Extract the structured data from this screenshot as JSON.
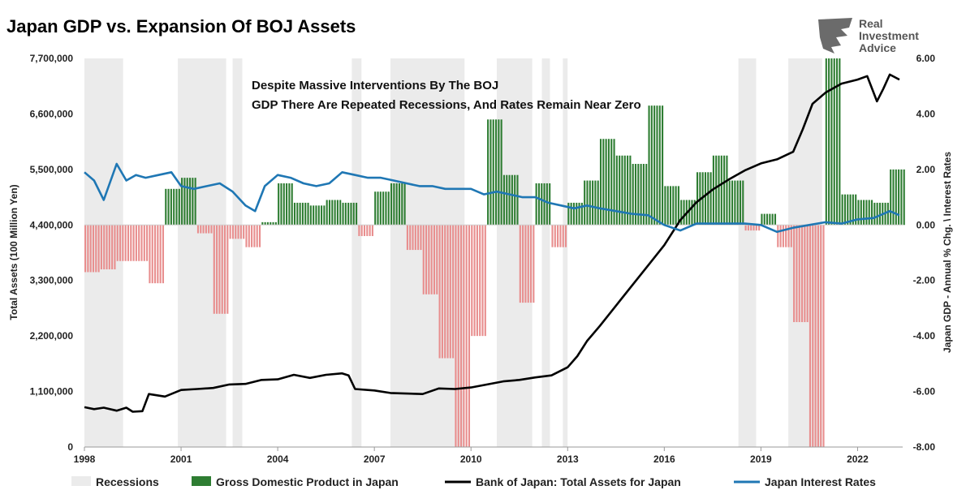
{
  "chart_data": {
    "type": "bar",
    "title": "Japan GDP vs. Expansion Of BOJ Assets",
    "annotation": [
      "Despite Massive Interventions By The BOJ",
      "GDP There Are Repeated Recessions, And Rates Remain Near Zero"
    ],
    "brand": [
      "Real",
      "Investment",
      "Advice"
    ],
    "ylabel_left": "Total Assets (100 Million Yen)",
    "ylabel_right": "Japan GDP - Annual % Chg. \\ Interest Rates",
    "xlim": [
      1998,
      2023.4
    ],
    "ylim_left": [
      0,
      7700000
    ],
    "ylim_right": [
      -8,
      6
    ],
    "x_ticks": [
      "1998",
      "2001",
      "2004",
      "2007",
      "2010",
      "2013",
      "2016",
      "2019",
      "2022"
    ],
    "y_left_ticks": [
      "0",
      "1,100,000",
      "2,200,000",
      "3,300,000",
      "4,400,000",
      "5,500,000",
      "6,600,000",
      "7,700,000"
    ],
    "y_right_ticks": [
      "-8.00",
      "-6.00",
      "-4.00",
      "-2.00",
      "0.00",
      "2.00",
      "4.00",
      "6.00"
    ],
    "legend": [
      "Recessions",
      "Gross Domestic Product in Japan",
      "Bank of Japan: Total Assets for Japan",
      "Japan Interest Rates"
    ],
    "colors": {
      "recession": "#ebebeb",
      "gdp_pos": "#2e7d32",
      "gdp_neg": "#e88e8e",
      "assets": "#000000",
      "rates": "#1f77b4"
    },
    "recessions": [
      [
        1998.0,
        1999.2
      ],
      [
        2000.9,
        2002.4
      ],
      [
        2002.6,
        2002.9
      ],
      [
        2006.3,
        2006.6
      ],
      [
        2007.5,
        2009.8
      ],
      [
        2010.8,
        2011.9
      ],
      [
        2012.2,
        2012.45
      ],
      [
        2012.85,
        2013.0
      ],
      [
        2018.3,
        2018.85
      ],
      [
        2019.85,
        2020.9
      ]
    ],
    "gdp": {
      "x": [
        1998.0,
        1998.5,
        1999.0,
        1999.5,
        2000.0,
        2000.5,
        2001.0,
        2001.5,
        2002.0,
        2002.5,
        2003.0,
        2003.5,
        2004.0,
        2004.5,
        2005.0,
        2005.5,
        2006.0,
        2006.5,
        2007.0,
        2007.5,
        2008.0,
        2008.5,
        2009.0,
        2009.5,
        2010.0,
        2010.5,
        2011.0,
        2011.5,
        2012.0,
        2012.5,
        2013.0,
        2013.5,
        2014.0,
        2014.5,
        2015.0,
        2015.5,
        2016.0,
        2016.5,
        2017.0,
        2017.5,
        2018.0,
        2018.5,
        2019.0,
        2019.5,
        2020.0,
        2020.5,
        2021.0,
        2021.5,
        2022.0,
        2022.5,
        2023.0
      ],
      "values": [
        -1.7,
        -1.6,
        -1.3,
        -1.3,
        -2.1,
        1.3,
        1.7,
        -0.3,
        -3.2,
        -0.5,
        -0.8,
        0.1,
        1.5,
        0.8,
        0.7,
        0.9,
        0.8,
        -0.4,
        1.2,
        1.5,
        -0.9,
        -2.5,
        -4.8,
        -8.0,
        -4.0,
        3.8,
        1.8,
        -2.8,
        1.5,
        -0.8,
        0.8,
        1.6,
        3.1,
        2.5,
        2.2,
        4.3,
        1.4,
        0.9,
        1.9,
        2.5,
        1.6,
        -0.2,
        0.4,
        -0.8,
        -3.5,
        -8.0,
        6.0,
        1.1,
        0.9,
        0.8,
        2.0
      ]
    },
    "series": [
      {
        "name": "Bank of Japan: Total Assets for Japan",
        "axis": "left",
        "x": [
          1998.0,
          1998.3,
          1998.6,
          1999.0,
          1999.3,
          1999.5,
          1999.8,
          2000.0,
          2000.5,
          2001.0,
          2001.5,
          2002.0,
          2002.5,
          2003.0,
          2003.5,
          2004.0,
          2004.5,
          2005.0,
          2005.5,
          2006.0,
          2006.2,
          2006.4,
          2007.0,
          2007.5,
          2008.0,
          2008.5,
          2009.0,
          2009.5,
          2010.0,
          2010.5,
          2011.0,
          2011.5,
          2012.0,
          2012.5,
          2013.0,
          2013.3,
          2013.6,
          2014.0,
          2014.5,
          2015.0,
          2015.5,
          2016.0,
          2016.5,
          2017.0,
          2017.5,
          2018.0,
          2018.5,
          2019.0,
          2019.5,
          2020.0,
          2020.3,
          2020.6,
          2021.0,
          2021.5,
          2022.0,
          2022.3,
          2022.6,
          2022.8,
          2023.0,
          2023.3
        ],
        "values": [
          790000,
          750000,
          780000,
          720000,
          780000,
          700000,
          710000,
          1050000,
          1000000,
          1130000,
          1150000,
          1170000,
          1240000,
          1250000,
          1330000,
          1340000,
          1430000,
          1370000,
          1430000,
          1460000,
          1420000,
          1150000,
          1120000,
          1070000,
          1060000,
          1050000,
          1160000,
          1150000,
          1180000,
          1240000,
          1300000,
          1330000,
          1380000,
          1420000,
          1580000,
          1800000,
          2100000,
          2400000,
          2800000,
          3200000,
          3600000,
          4000000,
          4500000,
          4850000,
          5100000,
          5300000,
          5480000,
          5620000,
          5700000,
          5850000,
          6300000,
          6800000,
          7020000,
          7200000,
          7280000,
          7350000,
          6850000,
          7100000,
          7380000,
          7280000
        ]
      },
      {
        "name": "Japan Interest Rates",
        "axis": "right",
        "x": [
          1998.0,
          1998.3,
          1998.6,
          1999.0,
          1999.3,
          1999.6,
          1999.9,
          2000.3,
          2000.7,
          2001.0,
          2001.4,
          2001.8,
          2002.2,
          2002.6,
          2003.0,
          2003.3,
          2003.6,
          2004.0,
          2004.4,
          2004.8,
          2005.2,
          2005.6,
          2006.0,
          2006.4,
          2006.8,
          2007.2,
          2007.6,
          2008.0,
          2008.4,
          2008.8,
          2009.2,
          2009.6,
          2010.0,
          2010.4,
          2010.8,
          2011.2,
          2011.6,
          2012.0,
          2012.4,
          2012.8,
          2013.2,
          2013.6,
          2014.0,
          2014.5,
          2015.0,
          2015.5,
          2016.0,
          2016.5,
          2017.0,
          2017.5,
          2018.0,
          2018.5,
          2019.0,
          2019.5,
          2020.0,
          2020.5,
          2021.0,
          2021.5,
          2022.0,
          2022.5,
          2023.0,
          2023.3
        ],
        "values": [
          1.9,
          1.6,
          0.9,
          2.2,
          1.6,
          1.8,
          1.7,
          1.8,
          1.9,
          1.4,
          1.3,
          1.4,
          1.5,
          1.2,
          0.7,
          0.5,
          1.4,
          1.8,
          1.7,
          1.5,
          1.4,
          1.5,
          1.9,
          1.8,
          1.7,
          1.7,
          1.6,
          1.5,
          1.4,
          1.4,
          1.3,
          1.3,
          1.3,
          1.1,
          1.2,
          1.1,
          1.0,
          1.0,
          0.8,
          0.7,
          0.6,
          0.7,
          0.6,
          0.5,
          0.4,
          0.35,
          0.0,
          -0.2,
          0.05,
          0.05,
          0.05,
          0.05,
          0.0,
          -0.25,
          -0.1,
          0.0,
          0.1,
          0.05,
          0.2,
          0.25,
          0.5,
          0.35
        ]
      }
    ]
  }
}
